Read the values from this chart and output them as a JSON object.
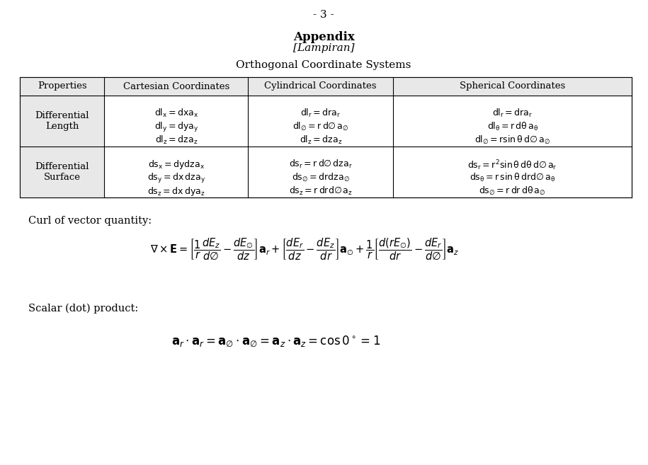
{
  "page_number": "- 3 -",
  "title_bold": "Appendix",
  "title_italic": "[Lampiran]",
  "subtitle": "Orthogonal Coordinate Systems",
  "table_headers": [
    "Properties",
    "Cartesian Coordinates",
    "Cylindrical Coordinates",
    "Spherical Coordinates"
  ],
  "row1_label": "Differential\nLength",
  "row2_label": "Differential\nSurface",
  "cartesian_length": [
    "$\\mathrm{dl_x = dxa_x}$",
    "$\\mathrm{dl_y = dya_y}$",
    "$\\mathrm{dl_z = dza_z}$"
  ],
  "cylindrical_length": [
    "$\\mathrm{dl_r = dra_r}$",
    "$\\mathrm{dl_{\\varnothing} = r\\,d\\varnothing\\,a_{\\varnothing}}$",
    "$\\mathrm{dl_z = dza_z}$"
  ],
  "spherical_length": [
    "$\\mathrm{dl_r = dra_r}$",
    "$\\mathrm{dl_{\\theta} = r\\,d\\theta\\,a_{\\theta}}$",
    "$\\mathrm{dl_{\\varnothing} = r\\sin\\theta\\,d\\varnothing\\,a_{\\varnothing}}$"
  ],
  "cartesian_surface": [
    "$\\mathrm{ds_x = dydza_x}$",
    "$\\mathrm{ds_y = dx\\,dza_y}$",
    "$\\mathrm{ds_z = dx\\,dya_z}$"
  ],
  "cylindrical_surface": [
    "$\\mathrm{ds_r = r\\,d\\varnothing\\,dza_r}$",
    "$\\mathrm{ds_{\\varnothing} = drdza_{\\varnothing}}$",
    "$\\mathrm{ds_z = r\\,drd\\varnothing\\,a_z}$"
  ],
  "spherical_surface": [
    "$\\mathrm{ds_r = r^2\\sin\\theta\\,d\\theta\\,d\\varnothing\\,a_r}$",
    "$\\mathrm{ds_{\\theta} = r\\,\\sin\\theta\\,drd\\varnothing\\,a_{\\theta}}$",
    "$\\mathrm{ds_{\\varnothing} = r\\,dr\\,d\\theta\\,a_{\\varnothing}}$"
  ],
  "curl_label": "Curl of vector quantity:",
  "curl_eq": "$\\nabla \\times \\mathbf{E} = \\left[\\dfrac{1}{r}\\dfrac{dE_z}{d\\varnothing} - \\dfrac{dE_{\\varnothing}}{dz}\\right]\\mathbf{a}_r + \\left[\\dfrac{dE_r}{dz} - \\dfrac{dE_z}{dr}\\right]\\mathbf{a}_{\\varnothing} + \\dfrac{1}{r}\\left[\\dfrac{d(rE_{\\varnothing})}{dr} - \\dfrac{dE_r}{d\\varnothing}\\right]\\mathbf{a}_z$",
  "scalar_label": "Scalar (dot) product:",
  "scalar_eq": "$\\mathbf{a}_r \\cdot \\mathbf{a}_r = \\mathbf{a}_{\\varnothing} \\cdot \\mathbf{a}_{\\varnothing} = \\mathbf{a}_z \\cdot \\mathbf{a}_z = \\cos 0^\\circ = 1$",
  "bg_color": "#ffffff",
  "text_color": "#000000",
  "header_bg": "#e8e8e8"
}
